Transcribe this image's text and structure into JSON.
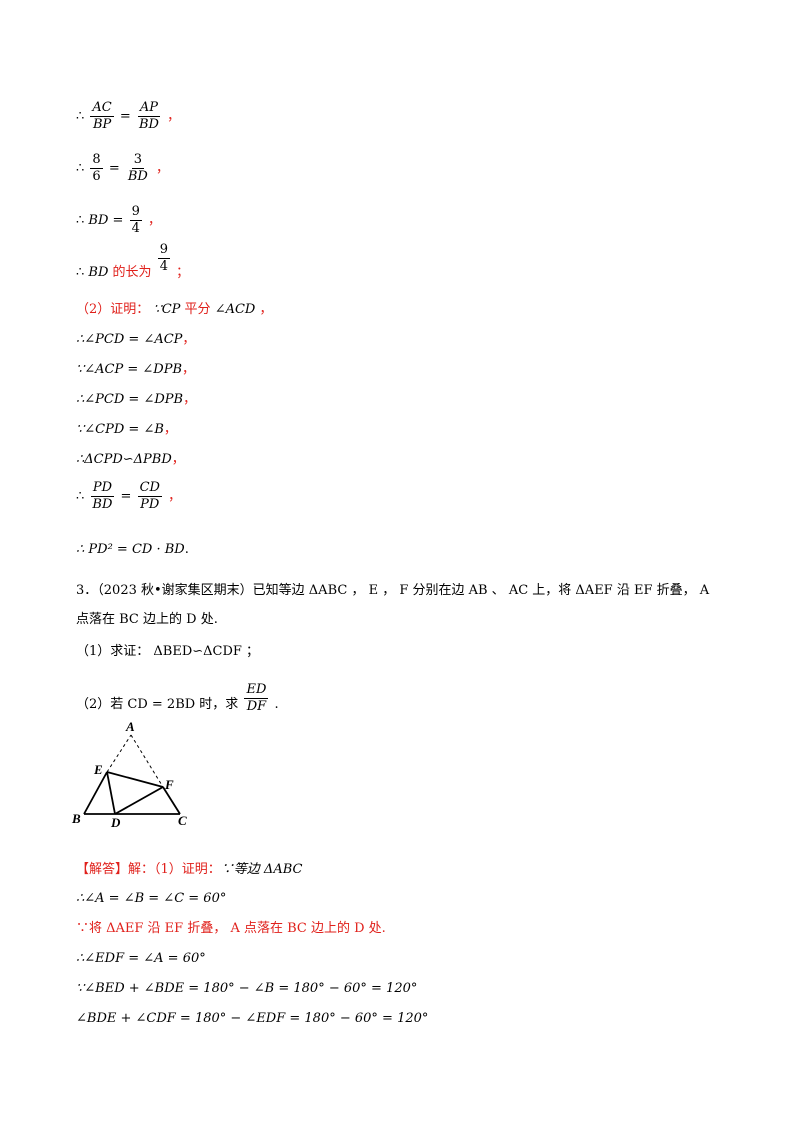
{
  "therefore": "∴",
  "because": "∵",
  "f1": {
    "n1": "AC",
    "d1": "BP",
    "n2": "AP",
    "d2": "BD",
    "tail": "，"
  },
  "f2": {
    "n1": "8",
    "d1": "6",
    "n2": "3",
    "d2": "BD",
    "tail": "，"
  },
  "f3": {
    "lhs": "BD =",
    "n": "9",
    "d": "4",
    "tail": "，"
  },
  "f4": {
    "lhs": "BD",
    "text": "的长为",
    "n": "9",
    "d": "4",
    "tail": "；"
  },
  "proof2": {
    "label": "（2）证明：",
    "cond": "∵CP",
    "text": "平分",
    "angle": "∠ACD",
    "tail": "，"
  },
  "l6": {
    "expr": "∴∠PCD = ∠ACP",
    "tail": "，"
  },
  "l7": {
    "expr": "∵∠ACP = ∠DPB",
    "tail": "，"
  },
  "l8": {
    "expr": "∴∠PCD = ∠DPB",
    "tail": "，"
  },
  "l9": {
    "expr": "∵∠CPD = ∠B",
    "tail": "，"
  },
  "l10": {
    "expr": "∴ΔCPD∽ΔPBD",
    "tail": "，"
  },
  "f11": {
    "n1": "PD",
    "d1": "BD",
    "n2": "CD",
    "d2": "PD",
    "tail": "，"
  },
  "l12": {
    "expr": "∴ PD² = CD · BD",
    "tail": "."
  },
  "q3": {
    "line1": "3．（2023 秋•谢家集区期末）已知等边 ΔABC ， E ， F 分别在边 AB 、 AC 上，将 ΔAEF 沿 EF 折叠， A",
    "line2": "点落在 BC 边上的 D 处.",
    "sub1": "（1）求证： ΔBED∽ΔCDF ；",
    "sub2_pre": "（2）若 CD = 2BD 时，求",
    "sub2_n": "ED",
    "sub2_d": "DF",
    "sub2_tail": "."
  },
  "figure": {
    "A": "A",
    "B": "B",
    "C": "C",
    "D": "D",
    "E": "E",
    "F": "F"
  },
  "answer": {
    "tag": "【解答】",
    "jie": "解：（1）证明：",
    "cond": "∵等边 ΔABC",
    "a1": "∴∠A = ∠B = ∠C = 60°",
    "a2_pre": "∵将 ΔAEF 沿 EF 折叠， A 点落在 BC 边上的 D 处.",
    "a3": "∴∠EDF = ∠A = 60°",
    "a4": "∵∠BED + ∠BDE = 180° − ∠B = 180° − 60° = 120°",
    "a5": "∠BDE + ∠CDF = 180° − ∠EDF = 180° − 60° = 120°"
  }
}
